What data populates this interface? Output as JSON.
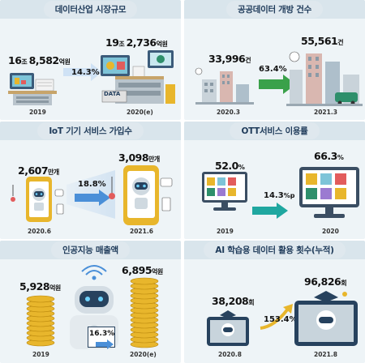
{
  "panels": {
    "data_industry": {
      "title": "데이터산업 시장규모",
      "before": {
        "num": "16",
        "unit1": "조 ",
        "num2": "8,582",
        "unit2": "억원",
        "year": "2019"
      },
      "after": {
        "num": "19",
        "unit1": "조 ",
        "num2": "2,736",
        "unit2": "억원",
        "year": "2020(e)"
      },
      "growth": "14.3%",
      "data_label": "DATA"
    },
    "public_data": {
      "title": "공공데이터 개방 건수",
      "before": {
        "num": "33,996",
        "unit": "건",
        "year": "2020.3"
      },
      "after": {
        "num": "55,561",
        "unit": "건",
        "year": "2021.3"
      },
      "growth": "63.4%"
    },
    "iot": {
      "title": "IoT 기기 서비스 가입수",
      "before": {
        "num": "2,607",
        "unit": "만개",
        "year": "2020.6"
      },
      "after": {
        "num": "3,098",
        "unit": "만개",
        "year": "2021.6"
      },
      "growth": "18.8%"
    },
    "ott": {
      "title": "OTT서비스 이용률",
      "before": {
        "num": "52.0",
        "unit": "%",
        "year": "2019"
      },
      "after": {
        "num": "66.3",
        "unit": "%",
        "year": "2020"
      },
      "growth_num": "14.3",
      "growth_unit": "%p"
    },
    "ai_sales": {
      "title": "인공지능 매출액",
      "before": {
        "num": "5,928",
        "unit": "억원",
        "year": "2019"
      },
      "after": {
        "num": "6,895",
        "unit": "억원",
        "year": "2020(e)"
      },
      "growth": "16.3%"
    },
    "ai_data": {
      "title": "AI 학습용 데이터 활용 횟수(누적)",
      "before": {
        "num": "38,208",
        "unit": "회",
        "year": "2020.8"
      },
      "after": {
        "num": "96,826",
        "unit": "회",
        "year": "2021.8"
      },
      "growth": "153.4%"
    }
  },
  "colors": {
    "panel_bg": "#eef4f7",
    "header_bg": "#d9e5ec",
    "title_text": "#1f3b5a",
    "arrow_blue": "#4a8fd8",
    "arrow_green": "#3aa14a",
    "arrow_teal": "#1fa7a0",
    "coin_gold": "#e8b62c"
  }
}
